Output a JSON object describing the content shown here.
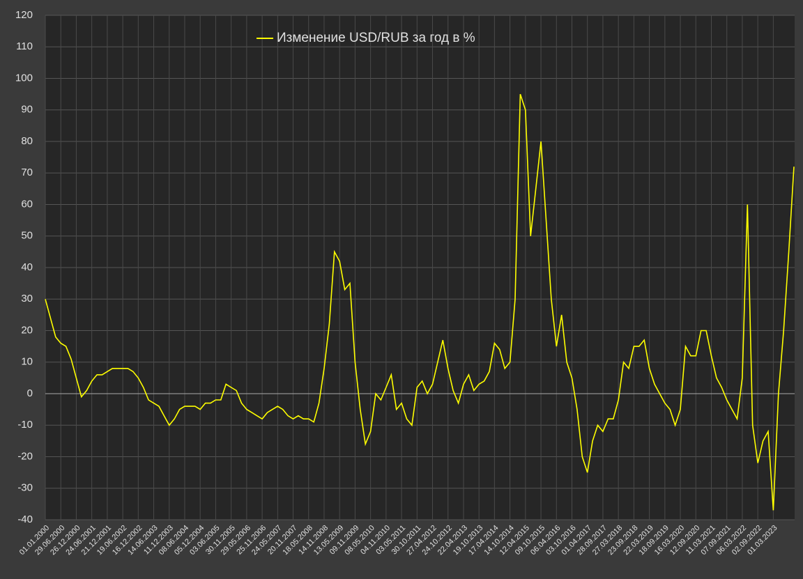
{
  "chart_data": {
    "type": "line",
    "categories": [
      "01.01.2000",
      null,
      null,
      "29.06.2000",
      null,
      null,
      "26.12.2000",
      null,
      null,
      "24.06.2001",
      null,
      null,
      "21.12.2001",
      null,
      null,
      "19.06.2002",
      null,
      null,
      "16.12.2002",
      null,
      null,
      "14.06.2003",
      null,
      null,
      "11.12.2003",
      null,
      null,
      "08.06.2004",
      null,
      null,
      "05.12.2004",
      null,
      null,
      "03.06.2005",
      null,
      null,
      "30.11.2005",
      null,
      null,
      "29.05.2006",
      null,
      null,
      "25.11.2006",
      null,
      null,
      "24.05.2007",
      null,
      null,
      "20.11.2007",
      null,
      null,
      "18.05.2008",
      null,
      null,
      "14.11.2008",
      null,
      null,
      "13.05.2009",
      null,
      null,
      "09.11.2009",
      null,
      null,
      "08.05.2010",
      null,
      null,
      "04.11.2010",
      null,
      null,
      "03.05.2011",
      null,
      null,
      "30.10.2011",
      null,
      null,
      "27.04.2012",
      null,
      null,
      "24.10.2012",
      null,
      null,
      "22.04.2013",
      null,
      null,
      "19.10.2013",
      null,
      null,
      "17.04.2014",
      null,
      null,
      "14.10.2014",
      null,
      null,
      "12.04.2015",
      null,
      null,
      "09.10.2015",
      null,
      null,
      "06.04.2016",
      null,
      null,
      "03.10.2016",
      null,
      null,
      "01.04.2017",
      null,
      null,
      "28.09.2017",
      null,
      null,
      "27.03.2018",
      null,
      null,
      "23.09.2018",
      null,
      null,
      "22.03.2019",
      null,
      null,
      "18.09.2019",
      null,
      null,
      "16.03.2020",
      null,
      null,
      "12.09.2020",
      null,
      null,
      "11.03.2021",
      null,
      null,
      "07.09.2021",
      null,
      null,
      "06.03.2022",
      null,
      null,
      "02.09.2022",
      null,
      null,
      "01.03.2023",
      null,
      null,
      null,
      null
    ],
    "series": [
      {
        "name": "Изменение USD/RUB за год в %",
        "color": "#ffff00",
        "values": [
          30,
          24,
          18,
          16,
          15,
          11,
          5,
          -1,
          1,
          4,
          6,
          6,
          7,
          8,
          8,
          8,
          8,
          7,
          5,
          2,
          -2,
          -3,
          -4,
          -7,
          -10,
          -8,
          -5,
          -4,
          -4,
          -4,
          -5,
          -3,
          -3,
          -2,
          -2,
          3,
          2,
          1,
          -3,
          -5,
          -6,
          -7,
          -8,
          -6,
          -5,
          -4,
          -5,
          -7,
          -8,
          -7,
          -8,
          -8,
          -9,
          -3,
          8,
          22,
          45,
          42,
          33,
          35,
          10,
          -5,
          -16,
          -12,
          0,
          -2,
          2,
          6,
          -5,
          -3,
          -8,
          -10,
          2,
          4,
          0,
          3,
          10,
          17,
          8,
          1,
          -3,
          3,
          6,
          1,
          3,
          4,
          7,
          16,
          14,
          8,
          10,
          30,
          95,
          90,
          50,
          65,
          80,
          55,
          30,
          15,
          25,
          10,
          5,
          -5,
          -20,
          -25,
          -15,
          -10,
          -12,
          -8,
          -8,
          -2,
          10,
          8,
          15,
          15,
          17,
          8,
          3,
          0,
          -3,
          -5,
          -10,
          -5,
          15,
          12,
          12,
          20,
          20,
          12,
          5,
          2,
          -2,
          -5,
          -8,
          5,
          60,
          -10,
          -22,
          -15,
          -12,
          -37,
          0,
          20,
          45,
          72
        ]
      }
    ],
    "ylim": [
      -40,
      120
    ],
    "yticks": [
      -40,
      -30,
      -20,
      -10,
      0,
      10,
      20,
      30,
      40,
      50,
      60,
      70,
      80,
      90,
      100,
      110,
      120
    ],
    "grid": true,
    "legend": "top"
  }
}
